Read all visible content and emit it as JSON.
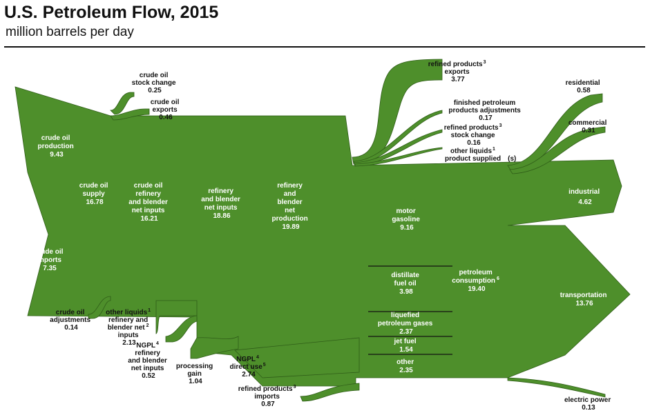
{
  "title": "U.S. Petroleum Flow, 2015",
  "subtitle": "million barrels per day",
  "colors": {
    "flow": "#4e8f2b",
    "edge": "#2f5d18",
    "text_on_flow": "#ffffff",
    "text": "#111111"
  },
  "nodes": {
    "crude_oil_production": {
      "lines": [
        "crude oil",
        "production",
        "9.43"
      ]
    },
    "crude_oil_imports": {
      "lines": [
        "crude oil",
        "imports",
        "7.35"
      ]
    },
    "crude_oil_supply": {
      "lines": [
        "crude oil",
        "supply",
        "16.78"
      ]
    },
    "crude_oil_refinery_inputs": {
      "lines": [
        "crude oil",
        "refinery",
        "and blender",
        "net inputs",
        "16.21"
      ]
    },
    "refinery_blender_net_inputs": {
      "lines": [
        "refinery",
        "and blender",
        "net inputs",
        "18.86"
      ]
    },
    "refinery_blender_net_production": {
      "lines": [
        "refinery",
        "and",
        "blender",
        "net",
        "production",
        "19.89"
      ]
    },
    "motor_gasoline": {
      "lines": [
        "motor",
        "gasoline",
        "9.16"
      ]
    },
    "distillate_fuel_oil": {
      "lines": [
        "distillate",
        "fuel oil",
        "3.98"
      ]
    },
    "liquefied_petroleum_gases": {
      "lines": [
        "liquefied",
        "petroleum gases",
        "2.37"
      ]
    },
    "jet_fuel": {
      "lines": [
        "jet fuel",
        "1.54"
      ]
    },
    "other": {
      "lines": [
        "other",
        "2.35"
      ]
    },
    "petroleum_consumption": {
      "lines": [
        "petroleum",
        "consumption",
        "19.40"
      ],
      "sup": "6"
    },
    "industrial": {
      "lines": [
        "industrial",
        "4.62"
      ]
    },
    "transportation": {
      "lines": [
        "transportation",
        "13.76"
      ]
    }
  },
  "callouts": {
    "crude_oil_stock_change": {
      "lines": [
        "crude oil",
        "stock change",
        "0.25"
      ]
    },
    "crude_oil_exports": {
      "lines": [
        "crude oil",
        "exports",
        "0.46"
      ]
    },
    "crude_oil_adjustments": {
      "lines": [
        "crude oil",
        "adjustments",
        "0.14"
      ]
    },
    "other_liquids_refinery": {
      "lines": [
        "other liquids",
        "refinery and",
        "blender net",
        "inputs",
        "2.13"
      ],
      "sup1": "1",
      "sup2": "2"
    },
    "ngpl_refinery": {
      "lines": [
        "NGPL",
        "refinery",
        "and blender",
        "net inputs",
        "0.52"
      ],
      "sup": "4"
    },
    "processing_gain": {
      "lines": [
        "processing",
        "gain",
        "1.04"
      ]
    },
    "ngpl_direct_use": {
      "lines": [
        "NGPL",
        "direct use",
        "2.74"
      ],
      "sup1": "4",
      "sup2": "5"
    },
    "refined_products_imports": {
      "lines": [
        "refined products",
        "imports",
        "0.87"
      ],
      "sup": "3"
    },
    "refined_products_exports": {
      "lines": [
        "refined products",
        "exports",
        "3.77"
      ],
      "sup": "3"
    },
    "finished_petroleum_adjustments": {
      "lines": [
        "finished petroleum",
        "products adjustments",
        "0.17"
      ]
    },
    "refined_products_stock_change": {
      "lines": [
        "refined products",
        "stock change",
        "0.16"
      ],
      "sup": "3"
    },
    "other_liquids_product_supplied": {
      "lines": [
        "other liquids",
        "product supplied",
        "(s)"
      ],
      "sup": "1"
    },
    "residential": {
      "lines": [
        "residential",
        "0.58"
      ]
    },
    "commercial": {
      "lines": [
        "commercial",
        "0.31"
      ]
    },
    "electric_power": {
      "lines": [
        "electric power",
        "0.13"
      ]
    }
  }
}
